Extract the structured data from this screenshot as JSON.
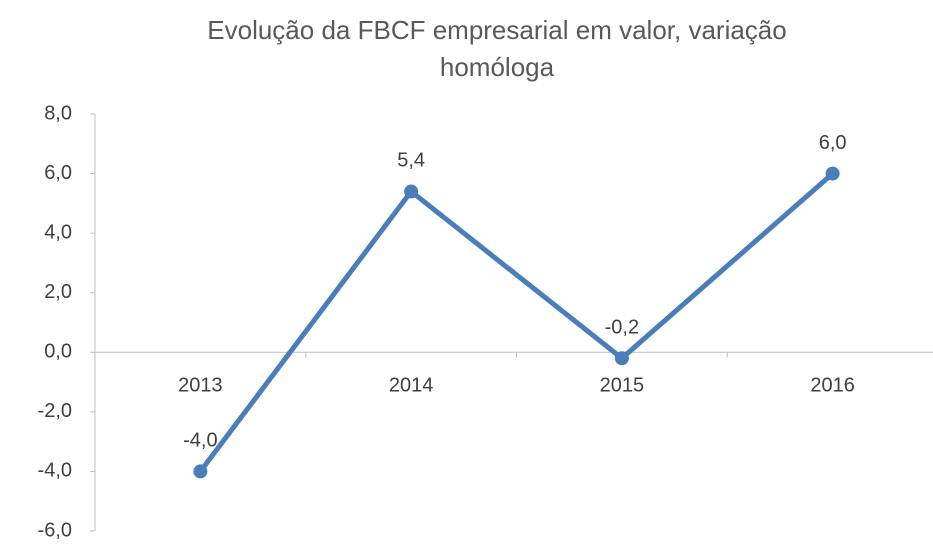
{
  "chart_data": {
    "type": "line",
    "title": "Evolução da FBCF empresarial em valor, variação homóloga",
    "categories": [
      "2013",
      "2014",
      "2015",
      "2016"
    ],
    "series": [
      {
        "color": "#4a7ebb",
        "values": [
          -4.0,
          5.4,
          -0.2,
          6.0
        ],
        "value_labels": [
          "-4,0",
          "5,4",
          "-0,2",
          "6,0"
        ]
      }
    ],
    "ylim": [
      -6,
      8
    ],
    "yticks": [
      {
        "value": -6,
        "label": "-6,0"
      },
      {
        "value": -4,
        "label": "-4,0"
      },
      {
        "value": -2,
        "label": "-2,0"
      },
      {
        "value": 0,
        "label": "0,0"
      },
      {
        "value": 2,
        "label": "2,0"
      },
      {
        "value": 4,
        "label": "4,0"
      },
      {
        "value": 6,
        "label": "6,0"
      },
      {
        "value": 8,
        "label": "8,0"
      }
    ],
    "grid": false
  }
}
